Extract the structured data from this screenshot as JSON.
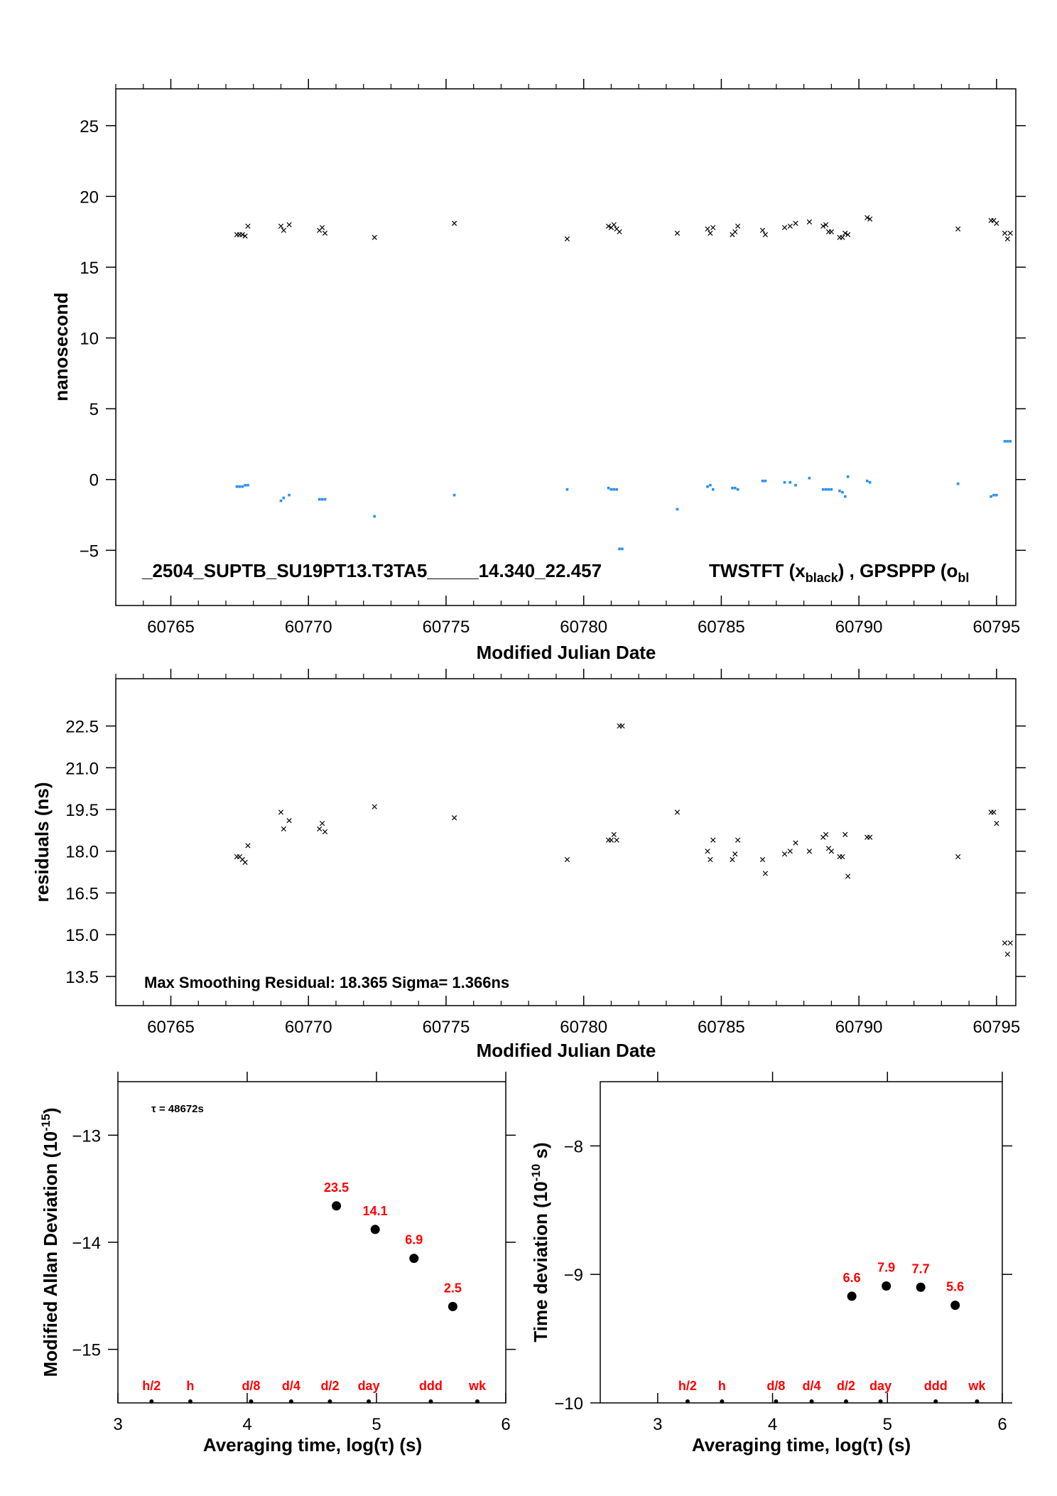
{
  "chart_data": [
    {
      "type": "scatter",
      "xlabel": "Modified Julian Date",
      "ylabel": "nanosecond",
      "xlim": [
        60763.0,
        60795.7
      ],
      "ylim": [
        -8.9,
        27.6
      ],
      "xticks": [
        "60765",
        "60770",
        "60775",
        "60780",
        "60785",
        "60790",
        "60795"
      ],
      "xtick_values": [
        60765,
        60770,
        60775,
        60780,
        60785,
        60790,
        60795
      ],
      "yticks": [
        "−5",
        "0",
        "5",
        "10",
        "15",
        "20",
        "25"
      ],
      "ytick_values": [
        -5,
        0,
        5,
        10,
        15,
        20,
        25
      ],
      "annotation": "_2504_SUPTB_SU19PT13.T3TA5_____14.340_22.457",
      "legend_parts": [
        "TWSTFT (x",
        "black",
        ") ,  GPSPPP (o",
        "bl"
      ],
      "series": [
        {
          "marker": "x",
          "color": "#000000",
          "points": [
            [
              60767.4,
              17.3
            ],
            [
              60767.5,
              17.3
            ],
            [
              60767.6,
              17.3
            ],
            [
              60767.7,
              17.2
            ],
            [
              60767.8,
              17.9
            ],
            [
              60769.0,
              17.9
            ],
            [
              60769.1,
              17.6
            ],
            [
              60769.3,
              18.0
            ],
            [
              60770.4,
              17.6
            ],
            [
              60770.5,
              17.8
            ],
            [
              60770.6,
              17.4
            ],
            [
              60772.4,
              17.1
            ],
            [
              60775.3,
              18.1
            ],
            [
              60779.4,
              17.0
            ],
            [
              60780.9,
              17.9
            ],
            [
              60781.0,
              17.8
            ],
            [
              60781.1,
              18.0
            ],
            [
              60781.2,
              17.7
            ],
            [
              60781.3,
              17.5
            ],
            [
              60783.4,
              17.4
            ],
            [
              60784.5,
              17.7
            ],
            [
              60784.6,
              17.4
            ],
            [
              60784.7,
              17.8
            ],
            [
              60785.4,
              17.3
            ],
            [
              60785.5,
              17.5
            ],
            [
              60785.6,
              17.9
            ],
            [
              60786.5,
              17.6
            ],
            [
              60786.6,
              17.3
            ],
            [
              60787.3,
              17.8
            ],
            [
              60787.5,
              17.9
            ],
            [
              60787.7,
              18.1
            ],
            [
              60788.2,
              18.2
            ],
            [
              60788.7,
              17.9
            ],
            [
              60788.8,
              18.0
            ],
            [
              60788.9,
              17.5
            ],
            [
              60789.0,
              17.5
            ],
            [
              60789.3,
              17.1
            ],
            [
              60789.4,
              17.1
            ],
            [
              60789.5,
              17.4
            ],
            [
              60789.6,
              17.3
            ],
            [
              60790.3,
              18.5
            ],
            [
              60790.4,
              18.4
            ],
            [
              60793.6,
              17.7
            ],
            [
              60794.8,
              18.3
            ],
            [
              60794.9,
              18.3
            ],
            [
              60795.0,
              18.1
            ],
            [
              60795.3,
              17.4
            ],
            [
              60795.4,
              17.0
            ],
            [
              60795.5,
              17.4
            ]
          ]
        },
        {
          "marker": "dot",
          "color": "#2a8ff0",
          "points": [
            [
              60767.4,
              -0.5
            ],
            [
              60767.5,
              -0.5
            ],
            [
              60767.6,
              -0.5
            ],
            [
              60767.7,
              -0.4
            ],
            [
              60767.8,
              -0.4
            ],
            [
              60769.0,
              -1.5
            ],
            [
              60769.1,
              -1.3
            ],
            [
              60769.3,
              -1.1
            ],
            [
              60770.4,
              -1.4
            ],
            [
              60770.5,
              -1.4
            ],
            [
              60770.6,
              -1.4
            ],
            [
              60772.4,
              -2.6
            ],
            [
              60775.3,
              -1.1
            ],
            [
              60779.4,
              -0.7
            ],
            [
              60780.9,
              -0.6
            ],
            [
              60781.0,
              -0.7
            ],
            [
              60781.1,
              -0.7
            ],
            [
              60781.2,
              -0.7
            ],
            [
              60781.3,
              -4.9
            ],
            [
              60781.4,
              -4.9
            ],
            [
              60783.4,
              -2.1
            ],
            [
              60784.5,
              -0.5
            ],
            [
              60784.6,
              -0.4
            ],
            [
              60784.7,
              -0.7
            ],
            [
              60785.4,
              -0.6
            ],
            [
              60785.5,
              -0.6
            ],
            [
              60785.6,
              -0.7
            ],
            [
              60786.5,
              -0.1
            ],
            [
              60786.6,
              -0.1
            ],
            [
              60787.3,
              -0.2
            ],
            [
              60787.5,
              -0.2
            ],
            [
              60787.7,
              -0.4
            ],
            [
              60788.2,
              0.1
            ],
            [
              60788.7,
              -0.7
            ],
            [
              60788.8,
              -0.7
            ],
            [
              60788.9,
              -0.7
            ],
            [
              60789.0,
              -0.7
            ],
            [
              60789.3,
              -0.8
            ],
            [
              60789.4,
              -0.9
            ],
            [
              60789.5,
              -1.2
            ],
            [
              60789.6,
              0.2
            ],
            [
              60790.3,
              -0.1
            ],
            [
              60790.4,
              -0.2
            ],
            [
              60793.6,
              -0.3
            ],
            [
              60794.8,
              -1.2
            ],
            [
              60794.9,
              -1.1
            ],
            [
              60795.0,
              -1.1
            ],
            [
              60795.3,
              2.7
            ],
            [
              60795.4,
              2.7
            ],
            [
              60795.5,
              2.7
            ]
          ]
        }
      ]
    },
    {
      "type": "scatter",
      "xlabel": "Modified Julian Date",
      "ylabel": "residuals (ns)",
      "xlim": [
        60763.0,
        60795.7
      ],
      "ylim": [
        12.45,
        24.2
      ],
      "xticks": [
        "60765",
        "60770",
        "60775",
        "60780",
        "60785",
        "60790",
        "60795"
      ],
      "xtick_values": [
        60765,
        60770,
        60775,
        60780,
        60785,
        60790,
        60795
      ],
      "yticks": [
        "13.5",
        "15.0",
        "16.5",
        "18.0",
        "19.5",
        "21.0",
        "22.5"
      ],
      "ytick_values": [
        13.5,
        15.0,
        16.5,
        18.0,
        19.5,
        21.0,
        22.5
      ],
      "annotation": "Max Smoothing Residual: 18.365  Sigma= 1.366ns",
      "series": [
        {
          "marker": "x",
          "color": "#000000",
          "points": [
            [
              60767.4,
              17.8
            ],
            [
              60767.5,
              17.8
            ],
            [
              60767.6,
              17.7
            ],
            [
              60767.7,
              17.6
            ],
            [
              60767.8,
              18.2
            ],
            [
              60769.0,
              19.4
            ],
            [
              60769.1,
              18.8
            ],
            [
              60769.3,
              19.1
            ],
            [
              60770.4,
              18.8
            ],
            [
              60770.5,
              19.0
            ],
            [
              60770.6,
              18.7
            ],
            [
              60772.4,
              19.6
            ],
            [
              60775.3,
              19.2
            ],
            [
              60779.4,
              17.7
            ],
            [
              60780.9,
              18.4
            ],
            [
              60781.0,
              18.4
            ],
            [
              60781.1,
              18.6
            ],
            [
              60781.2,
              18.4
            ],
            [
              60781.3,
              22.5
            ],
            [
              60781.4,
              22.5
            ],
            [
              60783.4,
              19.4
            ],
            [
              60784.5,
              18.0
            ],
            [
              60784.6,
              17.7
            ],
            [
              60784.7,
              18.4
            ],
            [
              60785.4,
              17.7
            ],
            [
              60785.5,
              17.9
            ],
            [
              60785.6,
              18.4
            ],
            [
              60786.5,
              17.7
            ],
            [
              60786.6,
              17.2
            ],
            [
              60787.3,
              17.9
            ],
            [
              60787.5,
              18.0
            ],
            [
              60787.7,
              18.3
            ],
            [
              60788.2,
              18.0
            ],
            [
              60788.7,
              18.5
            ],
            [
              60788.8,
              18.6
            ],
            [
              60788.9,
              18.1
            ],
            [
              60789.0,
              18.0
            ],
            [
              60789.3,
              17.8
            ],
            [
              60789.4,
              17.8
            ],
            [
              60789.5,
              18.6
            ],
            [
              60789.6,
              17.1
            ],
            [
              60790.3,
              18.5
            ],
            [
              60790.4,
              18.5
            ],
            [
              60793.6,
              17.8
            ],
            [
              60794.8,
              19.4
            ],
            [
              60794.9,
              19.4
            ],
            [
              60795.0,
              19.0
            ],
            [
              60795.3,
              14.7
            ],
            [
              60795.4,
              14.3
            ],
            [
              60795.5,
              14.7
            ]
          ]
        }
      ]
    },
    {
      "type": "scatter",
      "xlabel": "Averaging time, log(τ) (s)",
      "ylabel": "Modified Allan Deviation (10",
      "ylabel_sup": "-15",
      "ylabel_tail": ")",
      "xlim": [
        3,
        6
      ],
      "ylim": [
        -15.5,
        -12.5
      ],
      "xticks": [
        "3",
        "4",
        "5",
        "6"
      ],
      "xtick_values": [
        3,
        4,
        5,
        6
      ],
      "yticks": [
        "−15",
        "−14",
        "−13"
      ],
      "ytick_values": [
        -15,
        -14,
        -13
      ],
      "annotation": "τ = 48672s",
      "points": [
        [
          4.69,
          -13.66
        ],
        [
          4.99,
          -13.88
        ],
        [
          5.29,
          -14.15
        ],
        [
          5.59,
          -14.6
        ]
      ],
      "point_labels": [
        "23.5",
        "14.1",
        "6.9",
        "2.5"
      ],
      "interval_marks": [
        [
          3.26,
          "h/2"
        ],
        [
          3.56,
          "h"
        ],
        [
          4.03,
          "d/8"
        ],
        [
          4.34,
          "d/4"
        ],
        [
          4.64,
          "d/2"
        ],
        [
          4.94,
          "day"
        ],
        [
          5.42,
          "ddd"
        ],
        [
          5.78,
          "wk"
        ]
      ]
    },
    {
      "type": "scatter",
      "xlabel": "Averaging time, log(τ) (s)",
      "ylabel": "Time deviation (10",
      "ylabel_sup": "-10",
      "ylabel_tail": " s)",
      "xlim": [
        2.5,
        6
      ],
      "ylim": [
        -10,
        -7.5
      ],
      "xticks": [
        "3",
        "4",
        "5",
        "6"
      ],
      "xtick_values": [
        3,
        4,
        5,
        6
      ],
      "yticks": [
        "−10",
        "−9",
        "−8"
      ],
      "ytick_values": [
        -10,
        -9,
        -8
      ],
      "points": [
        [
          4.69,
          -9.17
        ],
        [
          4.99,
          -9.09
        ],
        [
          5.29,
          -9.1
        ],
        [
          5.59,
          -9.24
        ]
      ],
      "point_labels": [
        "6.6",
        "7.9",
        "7.7",
        "5.6"
      ],
      "interval_marks": [
        [
          3.26,
          "h/2"
        ],
        [
          3.56,
          "h"
        ],
        [
          4.03,
          "d/8"
        ],
        [
          4.34,
          "d/4"
        ],
        [
          4.64,
          "d/2"
        ],
        [
          4.94,
          "day"
        ],
        [
          5.42,
          "ddd"
        ],
        [
          5.78,
          "wk"
        ]
      ]
    }
  ]
}
